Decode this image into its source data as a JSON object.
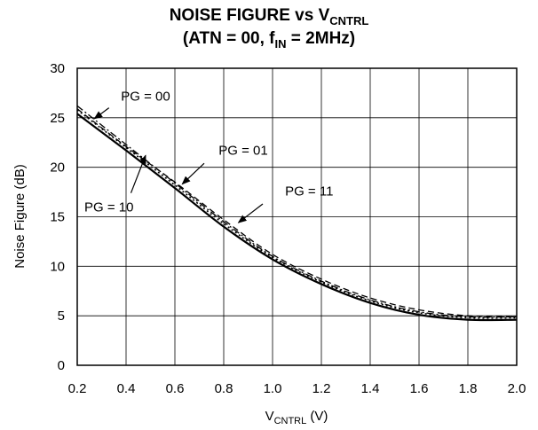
{
  "chart_data": {
    "type": "line",
    "title": {
      "line1_prefix": "NOISE FIGURE vs V",
      "line1_sub": "CNTRL",
      "line2_a": "(ATN = 00, f",
      "line2_sub": "IN",
      "line2_b": " = 2MHz)"
    },
    "xlabel": {
      "main": "V",
      "sub": "CNTRL",
      "suffix": " (V)"
    },
    "ylabel": "Noise Figure (dB)",
    "xlim": [
      0.2,
      2.0
    ],
    "ylim": [
      0,
      30
    ],
    "x_ticks": [
      "0.2",
      "0.4",
      "0.6",
      "0.8",
      "1.0",
      "1.2",
      "1.4",
      "1.6",
      "1.8",
      "2.0"
    ],
    "y_ticks": [
      "0",
      "5",
      "10",
      "15",
      "20",
      "25",
      "30"
    ],
    "grid": true,
    "x": [
      0.2,
      0.4,
      0.6,
      0.8,
      1.0,
      1.2,
      1.4,
      1.6,
      1.8,
      2.0
    ],
    "series": [
      {
        "name": "PG = 00",
        "style": "dash-dot",
        "values": [
          26.2,
          22.3,
          18.4,
          14.5,
          11.0,
          8.5,
          6.6,
          5.4,
          4.9,
          4.9
        ]
      },
      {
        "name": "PG = 01",
        "style": "dashed",
        "values": [
          25.9,
          22.1,
          18.5,
          14.7,
          11.2,
          8.7,
          6.8,
          5.6,
          5.0,
          4.9
        ]
      },
      {
        "name": "PG = 10",
        "style": "solid",
        "values": [
          25.4,
          21.7,
          17.9,
          14.0,
          10.7,
          8.2,
          6.3,
          5.1,
          4.6,
          4.6
        ]
      },
      {
        "name": "PG = 11",
        "style": "dotted",
        "values": [
          25.8,
          22.0,
          18.2,
          14.3,
          10.9,
          8.4,
          6.5,
          5.3,
          4.8,
          4.8
        ]
      }
    ],
    "annotations": [
      {
        "text": "PG = 00",
        "series": "PG = 00",
        "label_at": [
          0.48,
          27.2
        ],
        "arrow_from": [
          0.33,
          26.0
        ],
        "arrow_to": [
          0.27,
          24.9
        ]
      },
      {
        "text": "PG = 01",
        "series": "PG = 01",
        "label_at": [
          0.88,
          21.7
        ],
        "arrow_from": [
          0.72,
          20.4
        ],
        "arrow_to": [
          0.63,
          18.3
        ]
      },
      {
        "text": "PG = 10",
        "series": "PG = 10",
        "label_at": [
          0.33,
          16.0
        ],
        "arrow_from": [
          0.42,
          17.4
        ],
        "arrow_to": [
          0.48,
          21.2
        ]
      },
      {
        "text": "PG = 11",
        "series": "PG = 11",
        "label_at": [
          1.15,
          17.6
        ],
        "arrow_from": [
          0.96,
          16.3
        ],
        "arrow_to": [
          0.86,
          14.4
        ]
      }
    ]
  }
}
